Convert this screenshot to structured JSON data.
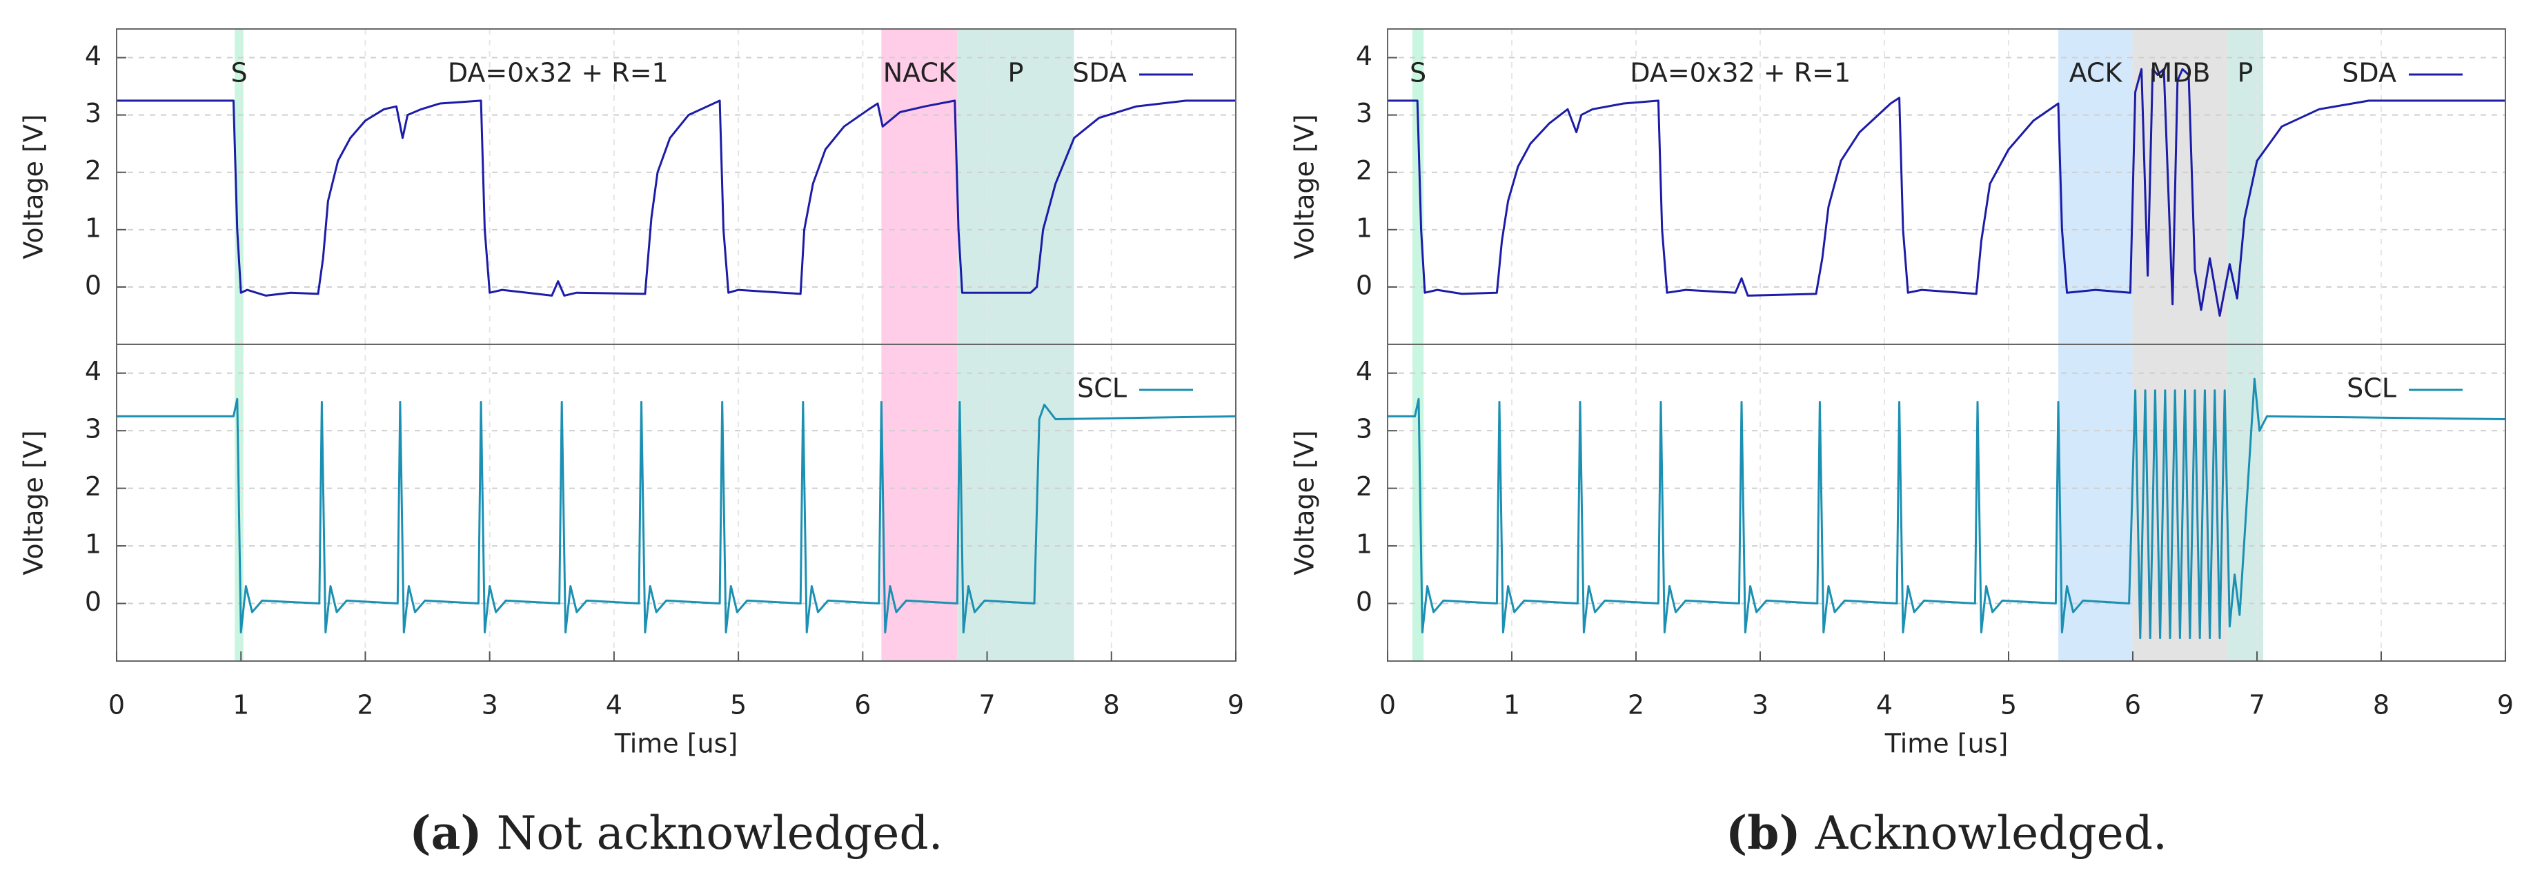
{
  "chart_data": [
    {
      "type": "line",
      "caption_label": "(a)",
      "caption": "Not acknowledged.",
      "xlabel": "Time [us]",
      "annotation": "DA=0x32 + R=1",
      "xlim": [
        0,
        9
      ],
      "xticks": [
        0,
        1,
        2,
        3,
        4,
        5,
        6,
        7,
        8,
        9
      ],
      "grid": true,
      "regions": [
        {
          "label": "S",
          "start": 0.95,
          "end": 1.02,
          "color": "#c9f6e1",
          "label_color": "#22b2d6"
        },
        {
          "label": "NACK",
          "start": 6.15,
          "end": 6.76,
          "color": "#ffcde8",
          "label_color": "#a3102c"
        },
        {
          "label": "P",
          "start": 6.76,
          "end": 7.7,
          "color": "#d3ebe7",
          "label_color": "#1aa8a8"
        }
      ],
      "panels": [
        {
          "ylabel": "Voltage [V]",
          "ylim": [
            -1,
            4.5
          ],
          "yticks": [
            0,
            1,
            2,
            3,
            4
          ],
          "series": [
            {
              "name": "SDA",
              "color": "#1c1ca8",
              "x": [
                0,
                0.94,
                0.97,
                1.0,
                1.05,
                1.2,
                1.4,
                1.62,
                1.66,
                1.7,
                1.78,
                1.88,
                2.0,
                2.15,
                2.25,
                2.3,
                2.34,
                2.45,
                2.6,
                2.93,
                2.96,
                3.0,
                3.1,
                3.5,
                3.55,
                3.6,
                3.7,
                4.25,
                4.3,
                4.35,
                4.45,
                4.6,
                4.85,
                4.88,
                4.92,
                5.0,
                5.5,
                5.53,
                5.6,
                5.7,
                5.85,
                6.05,
                6.12,
                6.16,
                6.3,
                6.5,
                6.74,
                6.77,
                6.8,
                7.0,
                7.35,
                7.4,
                7.45,
                7.55,
                7.7,
                7.9,
                8.2,
                8.6,
                9
              ],
              "values": [
                3.25,
                3.25,
                1.0,
                -0.1,
                -0.05,
                -0.15,
                -0.1,
                -0.12,
                0.5,
                1.5,
                2.2,
                2.6,
                2.9,
                3.1,
                3.15,
                2.6,
                3.0,
                3.1,
                3.2,
                3.25,
                1.0,
                -0.1,
                -0.05,
                -0.15,
                0.1,
                -0.15,
                -0.1,
                -0.12,
                1.2,
                2.0,
                2.6,
                3.0,
                3.25,
                1.0,
                -0.1,
                -0.05,
                -0.12,
                1.0,
                1.8,
                2.4,
                2.8,
                3.1,
                3.2,
                2.8,
                3.05,
                3.15,
                3.25,
                1.0,
                -0.1,
                -0.1,
                -0.1,
                0.0,
                1.0,
                1.8,
                2.6,
                2.95,
                3.15,
                3.25,
                3.25
              ]
            }
          ]
        },
        {
          "ylabel": "Voltage [V]",
          "ylim": [
            -1,
            4.5
          ],
          "yticks": [
            0,
            1,
            2,
            3,
            4
          ],
          "series": [
            {
              "name": "SCL",
              "color": "#1b90b2",
              "x": [
                0,
                0.94,
                0.97,
                1.0,
                1.04,
                1.09,
                1.17,
                1.63,
                1.65,
                1.68,
                1.72,
                1.77,
                1.85,
                2.26,
                2.28,
                2.31,
                2.35,
                2.4,
                2.48,
                2.91,
                2.93,
                2.96,
                3.0,
                3.05,
                3.13,
                3.56,
                3.58,
                3.61,
                3.65,
                3.7,
                3.78,
                4.2,
                4.22,
                4.25,
                4.29,
                4.34,
                4.42,
                4.85,
                4.87,
                4.9,
                4.94,
                4.99,
                5.07,
                5.5,
                5.52,
                5.55,
                5.59,
                5.64,
                5.72,
                6.13,
                6.15,
                6.18,
                6.22,
                6.27,
                6.35,
                6.76,
                6.78,
                6.81,
                6.85,
                6.9,
                6.98,
                7.38,
                7.42,
                7.46,
                7.55,
                9
              ],
              "values": [
                3.25,
                3.25,
                3.55,
                -0.5,
                0.3,
                -0.15,
                0.05,
                0,
                3.5,
                -0.5,
                0.3,
                -0.15,
                0.05,
                0,
                3.5,
                -0.5,
                0.3,
                -0.15,
                0.05,
                0,
                3.5,
                -0.5,
                0.3,
                -0.15,
                0.05,
                0,
                3.5,
                -0.5,
                0.3,
                -0.15,
                0.05,
                0,
                3.5,
                -0.5,
                0.3,
                -0.15,
                0.05,
                0,
                3.5,
                -0.5,
                0.3,
                -0.15,
                0.05,
                0,
                3.5,
                -0.5,
                0.3,
                -0.15,
                0.05,
                0,
                3.5,
                -0.5,
                0.3,
                -0.15,
                0.05,
                0,
                3.5,
                -0.5,
                0.3,
                -0.15,
                0.05,
                0,
                3.2,
                3.45,
                3.2,
                3.25
              ]
            }
          ]
        }
      ]
    },
    {
      "type": "line",
      "caption_label": "(b)",
      "caption": "Acknowledged.",
      "xlabel": "Time [us]",
      "annotation": "DA=0x32 + R=1",
      "xlim": [
        0,
        9
      ],
      "xticks": [
        0,
        1,
        2,
        3,
        4,
        5,
        6,
        7,
        8,
        9
      ],
      "grid": true,
      "regions": [
        {
          "label": "S",
          "start": 0.2,
          "end": 0.29,
          "color": "#c9f6e1",
          "label_color": "#22b2d6"
        },
        {
          "label": "ACK",
          "start": 5.4,
          "end": 6.0,
          "color": "#d4e8fb",
          "label_color": "#1532b4"
        },
        {
          "label": "MDB",
          "start": 6.0,
          "end": 6.76,
          "color": "#e3e3e3",
          "label_color": "#222222"
        },
        {
          "label": "P",
          "start": 6.76,
          "end": 7.05,
          "color": "#d3ebe7",
          "label_color": "#1aa8a8"
        }
      ],
      "panels": [
        {
          "ylabel": "Voltage [V]",
          "ylim": [
            -1,
            4.5
          ],
          "yticks": [
            0,
            1,
            2,
            3,
            4
          ],
          "series": [
            {
              "name": "SDA",
              "color": "#1c1ca8",
              "x": [
                0,
                0.24,
                0.27,
                0.3,
                0.4,
                0.6,
                0.88,
                0.92,
                0.97,
                1.05,
                1.15,
                1.3,
                1.45,
                1.52,
                1.56,
                1.65,
                1.9,
                2.18,
                2.21,
                2.25,
                2.4,
                2.8,
                2.85,
                2.9,
                3.45,
                3.5,
                3.55,
                3.65,
                3.8,
                4.05,
                4.12,
                4.15,
                4.19,
                4.3,
                4.74,
                4.78,
                4.85,
                5.0,
                5.2,
                5.4,
                5.43,
                5.47,
                5.7,
                5.98,
                6.02,
                6.07,
                6.12,
                6.16,
                6.2,
                6.25,
                6.32,
                6.36,
                6.4,
                6.45,
                6.5,
                6.55,
                6.62,
                6.7,
                6.78,
                6.84,
                6.9,
                7.0,
                7.2,
                7.5,
                7.9,
                9
              ],
              "values": [
                3.25,
                3.25,
                1.0,
                -0.1,
                -0.05,
                -0.12,
                -0.1,
                0.8,
                1.5,
                2.1,
                2.5,
                2.85,
                3.1,
                2.7,
                3.0,
                3.1,
                3.2,
                3.25,
                1.0,
                -0.1,
                -0.05,
                -0.1,
                0.15,
                -0.15,
                -0.12,
                0.5,
                1.4,
                2.2,
                2.7,
                3.2,
                3.3,
                1.0,
                -0.1,
                -0.05,
                -0.12,
                0.8,
                1.8,
                2.4,
                2.9,
                3.2,
                1.0,
                -0.1,
                -0.05,
                -0.1,
                3.4,
                3.8,
                0.2,
                3.8,
                3.7,
                3.8,
                -0.3,
                3.6,
                3.8,
                3.7,
                0.3,
                -0.4,
                0.5,
                -0.5,
                0.4,
                -0.2,
                1.2,
                2.2,
                2.8,
                3.1,
                3.25,
                3.25
              ]
            }
          ]
        },
        {
          "ylabel": "Voltage [V]",
          "ylim": [
            -1,
            4.5
          ],
          "yticks": [
            0,
            1,
            2,
            3,
            4
          ],
          "series": [
            {
              "name": "SCL",
              "color": "#1b90b2",
              "x": [
                0,
                0.22,
                0.25,
                0.28,
                0.32,
                0.37,
                0.45,
                0.88,
                0.9,
                0.93,
                0.97,
                1.02,
                1.1,
                1.53,
                1.55,
                1.58,
                1.62,
                1.67,
                1.75,
                2.18,
                2.2,
                2.23,
                2.27,
                2.32,
                2.4,
                2.83,
                2.85,
                2.88,
                2.92,
                2.97,
                3.05,
                3.46,
                3.48,
                3.51,
                3.55,
                3.6,
                3.68,
                4.1,
                4.12,
                4.15,
                4.19,
                4.24,
                4.32,
                4.73,
                4.75,
                4.78,
                4.82,
                4.87,
                4.95,
                5.38,
                5.4,
                5.43,
                5.47,
                5.52,
                5.6,
                5.97,
                6.02,
                6.06,
                6.1,
                6.14,
                6.18,
                6.22,
                6.26,
                6.3,
                6.34,
                6.38,
                6.42,
                6.46,
                6.5,
                6.54,
                6.58,
                6.62,
                6.66,
                6.7,
                6.74,
                6.78,
                6.82,
                6.86,
                6.98,
                7.02,
                7.08,
                9
              ],
              "values": [
                3.25,
                3.25,
                3.55,
                -0.5,
                0.3,
                -0.15,
                0.05,
                0,
                3.5,
                -0.5,
                0.3,
                -0.15,
                0.05,
                0,
                3.5,
                -0.5,
                0.3,
                -0.15,
                0.05,
                0,
                3.5,
                -0.5,
                0.3,
                -0.15,
                0.05,
                0,
                3.5,
                -0.5,
                0.3,
                -0.15,
                0.05,
                0,
                3.5,
                -0.5,
                0.3,
                -0.15,
                0.05,
                0,
                3.5,
                -0.5,
                0.3,
                -0.15,
                0.05,
                0,
                3.5,
                -0.5,
                0.3,
                -0.15,
                0.05,
                0,
                3.5,
                -0.5,
                0.3,
                -0.15,
                0.05,
                0,
                3.7,
                -0.6,
                3.7,
                -0.6,
                3.7,
                -0.6,
                3.7,
                -0.6,
                3.7,
                -0.6,
                3.7,
                -0.6,
                3.7,
                -0.6,
                3.7,
                -0.6,
                3.7,
                -0.6,
                3.7,
                -0.4,
                0.5,
                -0.2,
                3.9,
                3.0,
                3.25,
                3.2
              ]
            }
          ]
        }
      ]
    }
  ]
}
